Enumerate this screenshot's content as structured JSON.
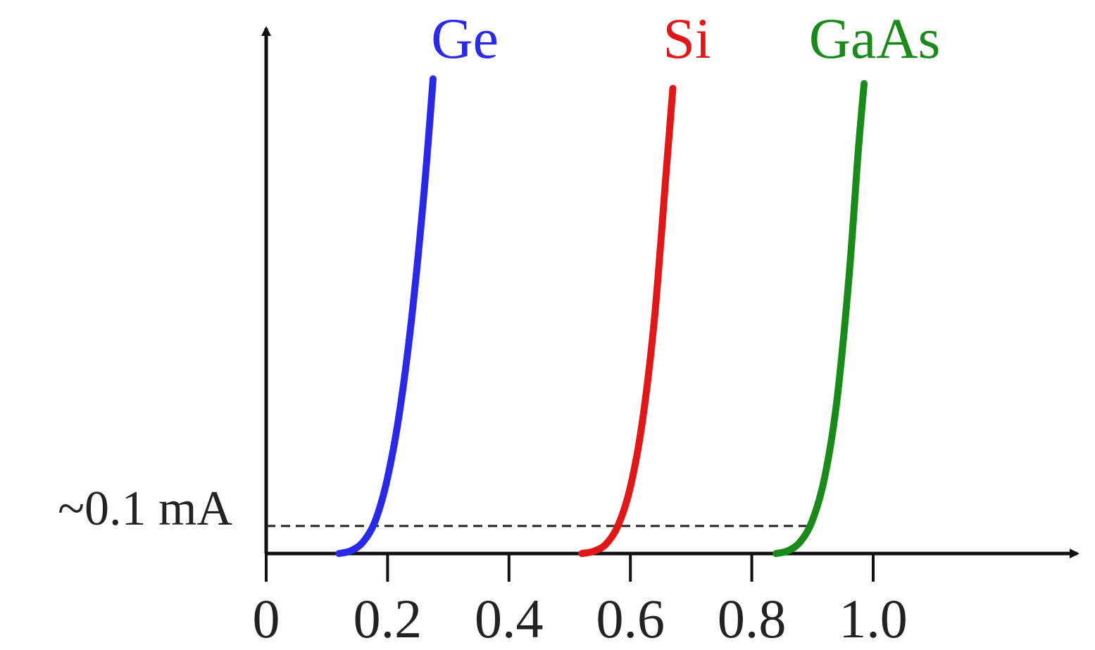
{
  "chart_data": {
    "type": "line",
    "title": "",
    "xlabel": "",
    "ylabel": "",
    "x_ticks": [
      "0",
      "0.2",
      "0.4",
      "0.6",
      "0.8",
      "1.0"
    ],
    "x_tick_values": [
      0,
      0.2,
      0.4,
      0.6,
      0.8,
      1.0
    ],
    "xlim": [
      0,
      1.35
    ],
    "ylim": [
      0,
      1.0
    ],
    "grid": false,
    "legend": "labels above curve ends",
    "reference_line": {
      "label": "~0.1 mA",
      "y": 0.058,
      "style": "dashed",
      "color": "#222222"
    },
    "series": [
      {
        "name": "Ge",
        "color": "#2a2ae6",
        "x": [
          0.12,
          0.14,
          0.16,
          0.18,
          0.2,
          0.22,
          0.24,
          0.26,
          0.275
        ],
        "y": [
          0.0,
          0.006,
          0.025,
          0.07,
          0.16,
          0.3,
          0.5,
          0.76,
          1.0
        ]
      },
      {
        "name": "Si",
        "color": "#e01818",
        "x": [
          0.52,
          0.54,
          0.56,
          0.58,
          0.6,
          0.62,
          0.64,
          0.66,
          0.67
        ],
        "y": [
          0.0,
          0.005,
          0.02,
          0.06,
          0.14,
          0.28,
          0.5,
          0.82,
          0.98
        ]
      },
      {
        "name": "GaAs",
        "color": "#1a8a1a",
        "x": [
          0.84,
          0.86,
          0.88,
          0.9,
          0.92,
          0.94,
          0.96,
          0.975,
          0.985
        ],
        "y": [
          0.0,
          0.006,
          0.025,
          0.07,
          0.16,
          0.32,
          0.58,
          0.84,
          0.99
        ]
      }
    ]
  }
}
